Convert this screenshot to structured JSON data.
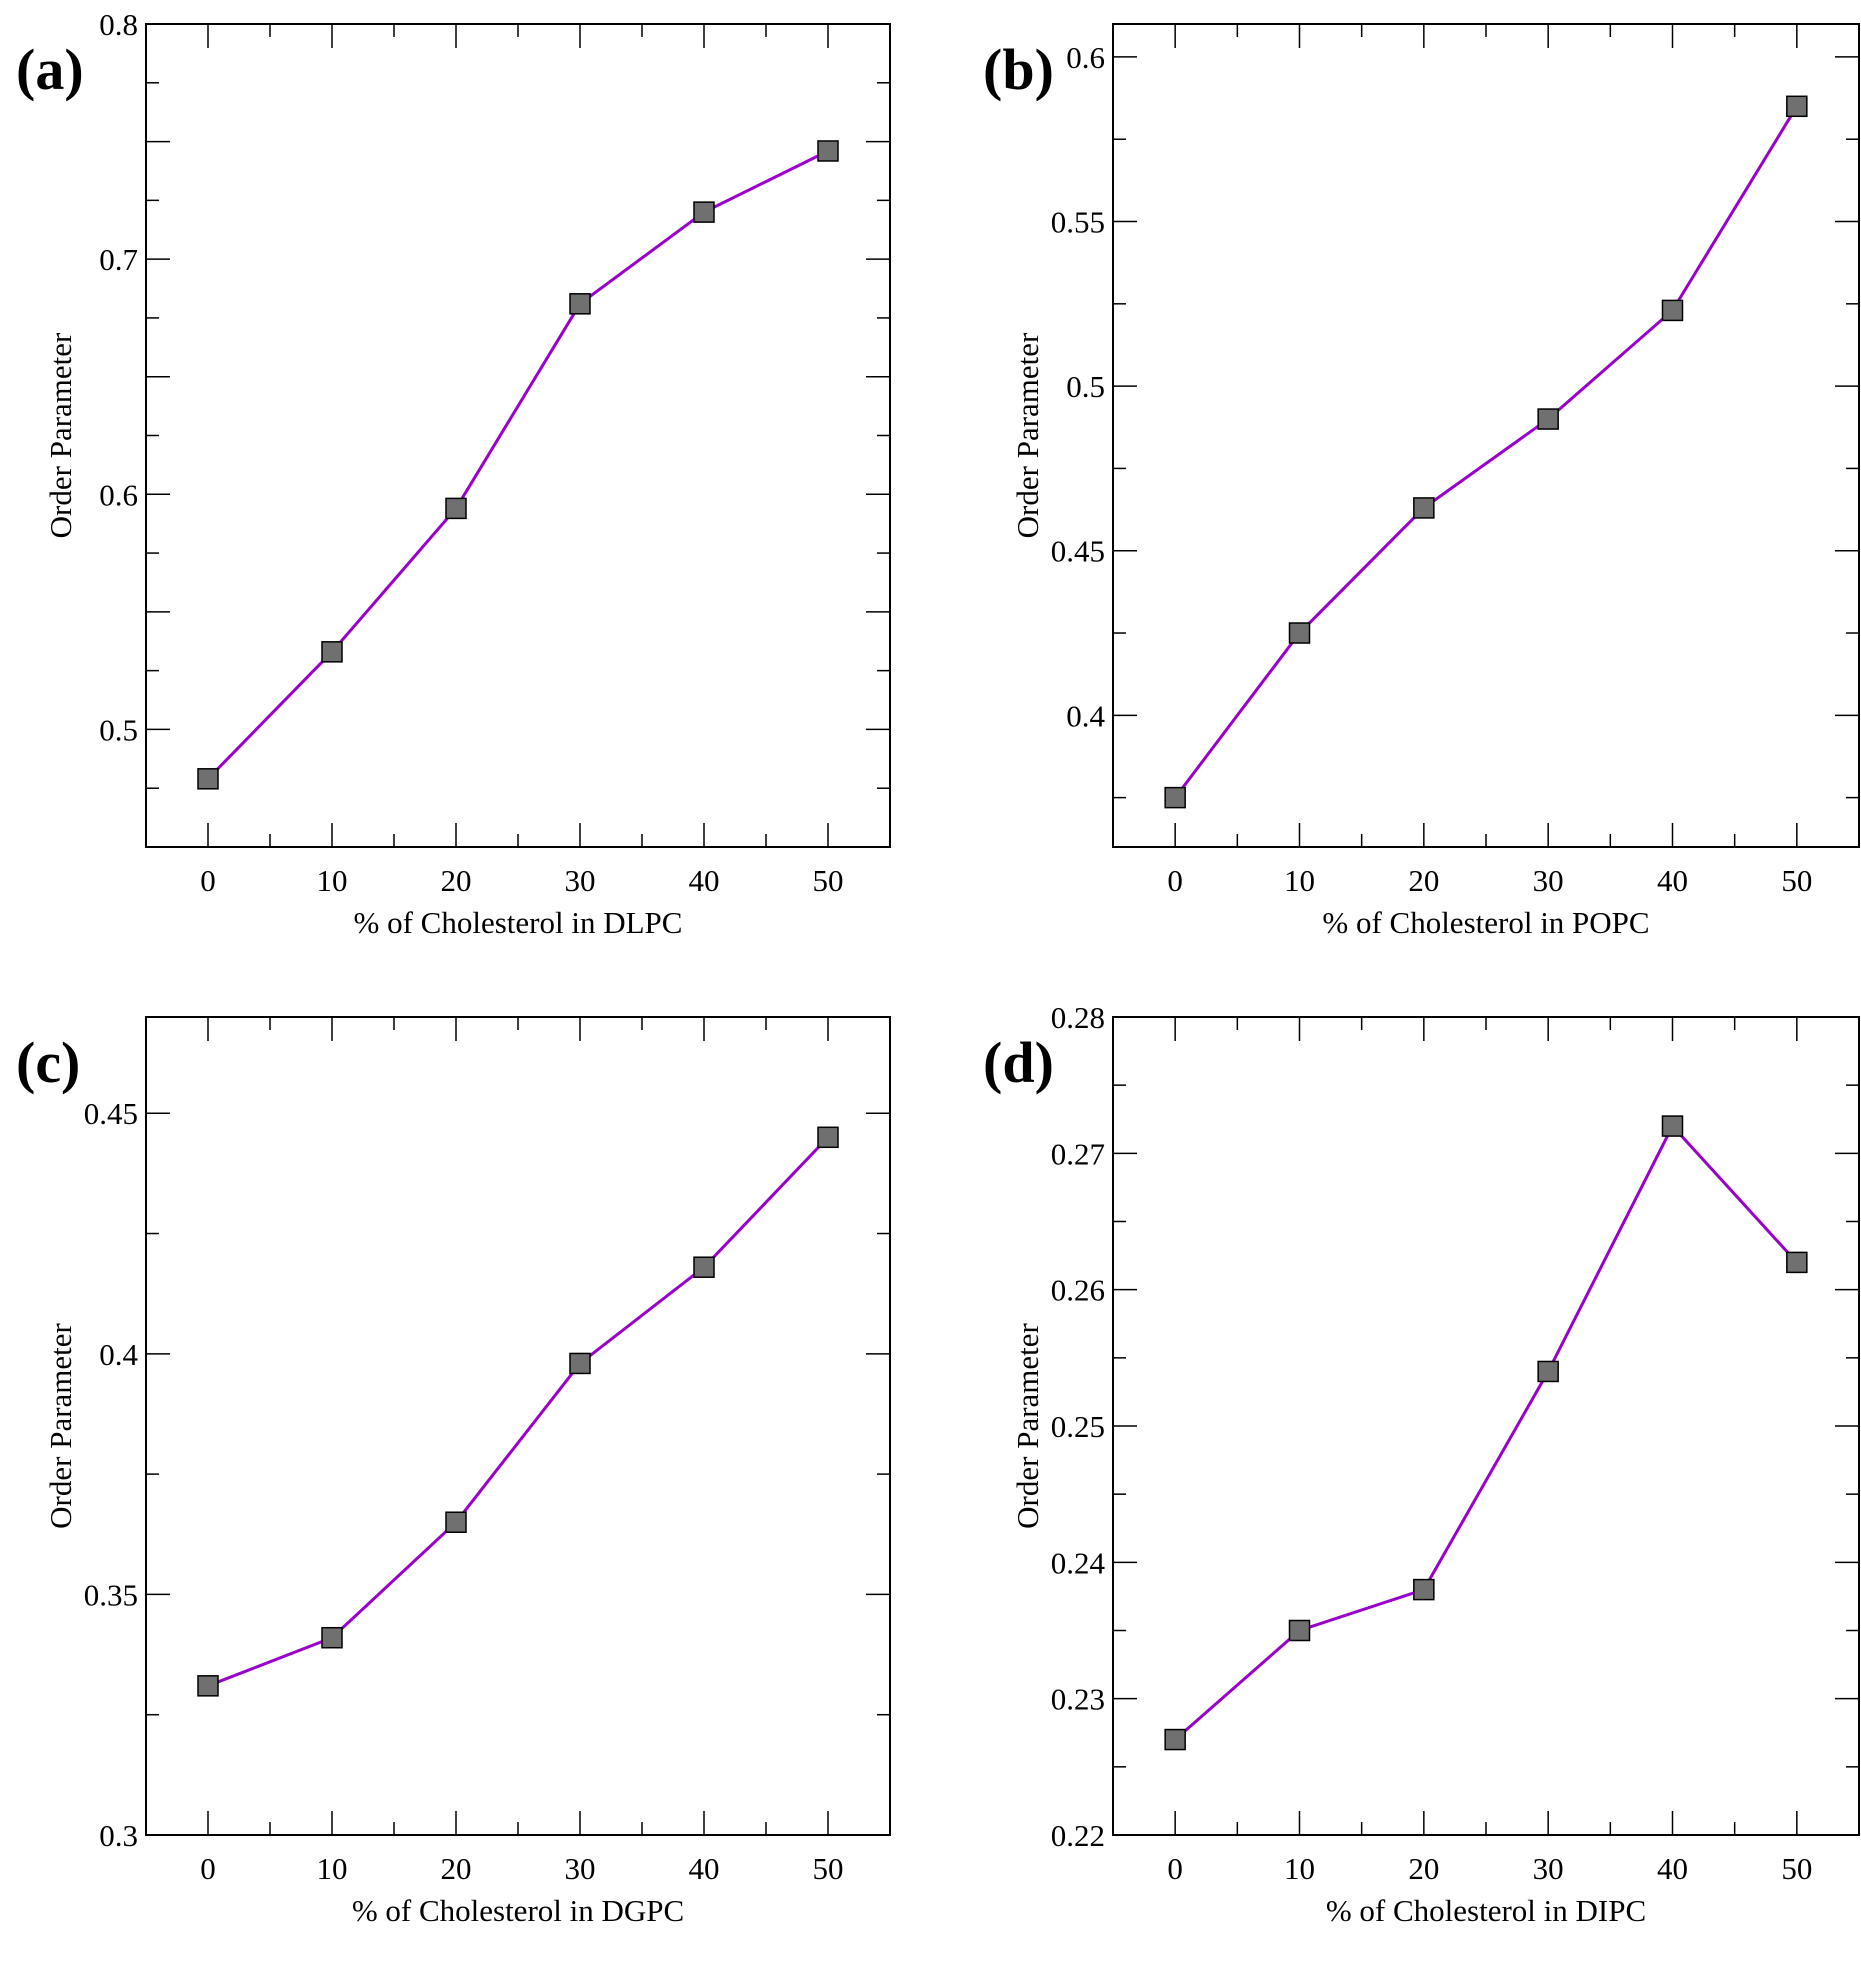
{
  "line_color": "#9900cc",
  "marker_color": "#707070",
  "chart_data": [
    {
      "type": "line",
      "panel_label": "(a)",
      "xlabel": "% of Cholesterol in DLPC",
      "ylabel": "Order Parameter",
      "x": [
        0,
        10,
        20,
        30,
        40,
        50
      ],
      "values": [
        0.479,
        0.533,
        0.594,
        0.681,
        0.72,
        0.746
      ],
      "xlim": [
        -5,
        55
      ],
      "ylim": [
        0.45,
        0.8
      ],
      "xticks": [
        "0",
        "10",
        "20",
        "30",
        "40",
        "50"
      ],
      "yticks": [
        "0.5",
        "0.6",
        "0.7",
        "0.8"
      ],
      "ytick_values": [
        0.5,
        0.6,
        0.7,
        0.8
      ],
      "yminor_step": 0.025,
      "grid": false
    },
    {
      "type": "line",
      "panel_label": "(b)",
      "xlabel": "% of Cholesterol in POPC",
      "ylabel": "Order Parameter",
      "x": [
        0,
        10,
        20,
        30,
        40,
        50
      ],
      "values": [
        0.375,
        0.425,
        0.463,
        0.49,
        0.523,
        0.585
      ],
      "xlim": [
        -5,
        55
      ],
      "ylim": [
        0.36,
        0.61
      ],
      "xticks": [
        "0",
        "10",
        "20",
        "30",
        "40",
        "50"
      ],
      "yticks": [
        "0.4",
        "0.45",
        "0.5",
        "0.55",
        "0.6"
      ],
      "ytick_values": [
        0.4,
        0.45,
        0.5,
        0.55,
        0.6
      ],
      "yminor_step": 0.025,
      "grid": false
    },
    {
      "type": "line",
      "panel_label": "(c)",
      "xlabel": "% of Cholesterol in DGPC",
      "ylabel": "Order Parameter",
      "x": [
        0,
        10,
        20,
        30,
        40,
        50
      ],
      "values": [
        0.331,
        0.341,
        0.365,
        0.398,
        0.418,
        0.445
      ],
      "xlim": [
        -5,
        55
      ],
      "ylim": [
        0.3,
        0.47
      ],
      "xticks": [
        "0",
        "10",
        "20",
        "30",
        "40",
        "50"
      ],
      "yticks": [
        "0.3",
        "0.35",
        "0.4",
        "0.45"
      ],
      "ytick_values": [
        0.3,
        0.35,
        0.4,
        0.45
      ],
      "yminor_step": 0.025,
      "grid": false
    },
    {
      "type": "line",
      "panel_label": "(d)",
      "xlabel": "% of Cholesterol in DIPC",
      "ylabel": "Order Parameter",
      "x": [
        0,
        10,
        20,
        30,
        40,
        50
      ],
      "values": [
        0.227,
        0.235,
        0.238,
        0.254,
        0.272,
        0.262
      ],
      "xlim": [
        -5,
        55
      ],
      "ylim": [
        0.22,
        0.28
      ],
      "xticks": [
        "0",
        "10",
        "20",
        "30",
        "40",
        "50"
      ],
      "yticks": [
        "0.22",
        "0.23",
        "0.24",
        "0.25",
        "0.26",
        "0.27",
        "0.28"
      ],
      "ytick_values": [
        0.22,
        0.23,
        0.24,
        0.25,
        0.26,
        0.27,
        0.28
      ],
      "yminor_step": 0.005,
      "grid": false
    }
  ]
}
